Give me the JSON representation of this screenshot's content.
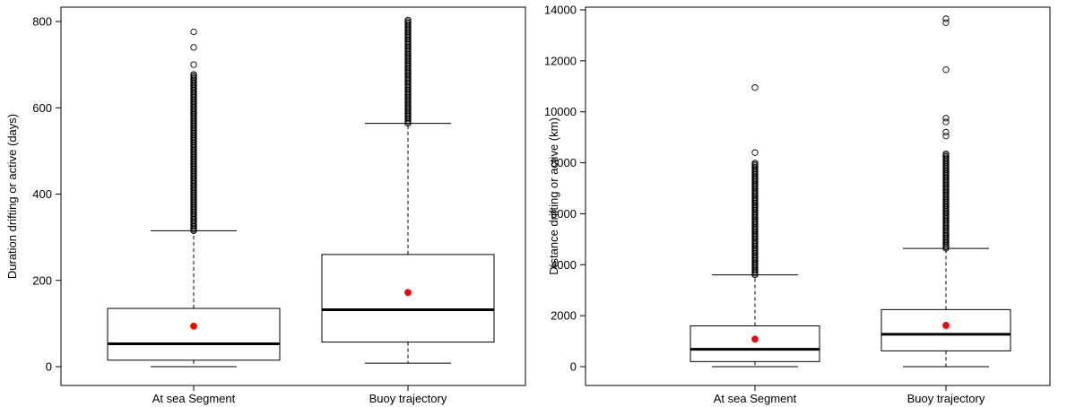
{
  "chart_data": [
    {
      "type": "boxplot",
      "ylabel": "Duration drifting or active (days)",
      "xlabel": "",
      "ylim": [
        0,
        800
      ],
      "yticks": [
        0,
        200,
        400,
        600,
        800
      ],
      "categories": [
        "At sea Segment",
        "Buoy trajectory"
      ],
      "boxes": [
        {
          "category": "At sea Segment",
          "whisker_low": 0,
          "q1": 15,
          "median": 53,
          "q3": 135,
          "whisker_high": 315,
          "mean": 94,
          "outliers_dense_range": [
            315,
            680
          ],
          "outliers": [
            700,
            740,
            776
          ]
        },
        {
          "category": "Buoy trajectory",
          "whisker_low": 8,
          "q1": 57,
          "median": 132,
          "q3": 260,
          "whisker_high": 564,
          "mean": 172,
          "outliers_dense_range": [
            564,
            805
          ],
          "outliers": []
        }
      ],
      "mean_color": "#ff0000",
      "grid": false
    },
    {
      "type": "boxplot",
      "ylabel": "Distance drifting or active (km)",
      "xlabel": "",
      "ylim": [
        0,
        14000
      ],
      "yticks": [
        0,
        2000,
        4000,
        6000,
        8000,
        10000,
        12000,
        14000
      ],
      "categories": [
        "At sea Segment",
        "Buoy trajectory"
      ],
      "boxes": [
        {
          "category": "At sea Segment",
          "whisker_low": 0,
          "q1": 200,
          "median": 680,
          "q3": 1600,
          "whisker_high": 3600,
          "mean": 1080,
          "outliers_dense_range": [
            3600,
            8000
          ],
          "outliers": [
            8400,
            10950
          ]
        },
        {
          "category": "Buoy trajectory",
          "whisker_low": 0,
          "q1": 620,
          "median": 1270,
          "q3": 2240,
          "whisker_high": 4640,
          "mean": 1620,
          "outliers_dense_range": [
            4640,
            8400
          ],
          "outliers": [
            9050,
            9200,
            9600,
            9750,
            11650,
            13500,
            13650
          ]
        }
      ],
      "mean_color": "#ff0000",
      "grid": false
    }
  ]
}
